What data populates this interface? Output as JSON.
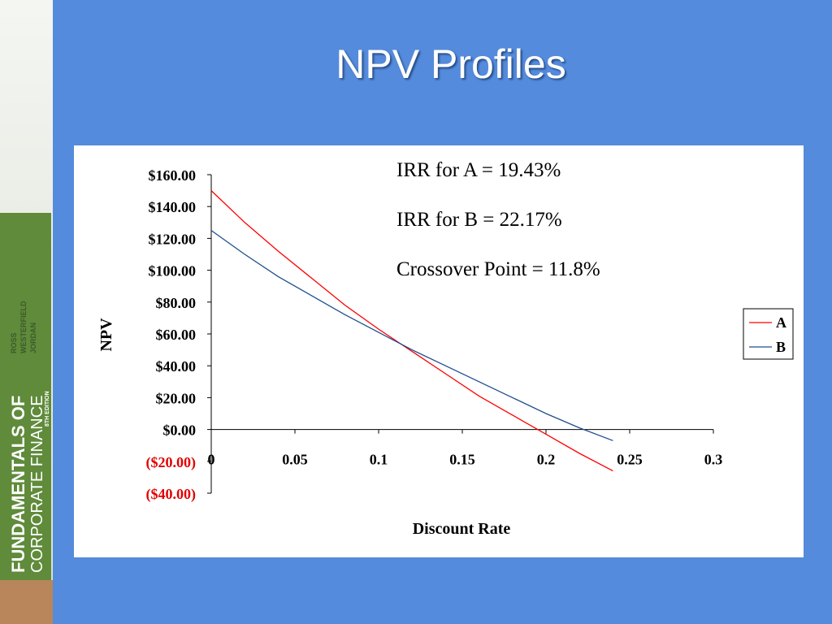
{
  "slide": {
    "title": "NPV Profiles",
    "book": {
      "title_bold": "FUNDAMENTALS OF",
      "title_light": "CORPORATE FINANCE",
      "authors": [
        "ROSS",
        "WESTERFIELD",
        "JORDAN"
      ],
      "edition": "8TH EDITION"
    }
  },
  "chart_data": {
    "type": "line",
    "xlabel": "Discount Rate",
    "ylabel": "NPV",
    "annotations": [
      "IRR for A = 19.43%",
      "IRR for B = 22.17%",
      "Crossover Point = 11.8%"
    ],
    "x": [
      0,
      0.02,
      0.04,
      0.06,
      0.08,
      0.1,
      0.12,
      0.14,
      0.16,
      0.18,
      0.2,
      0.22,
      0.24
    ],
    "series": [
      {
        "name": "A",
        "color": "#ff0000",
        "values": [
          150,
          130,
          112,
          95,
          78,
          63,
          49,
          35,
          21,
          9,
          -3,
          -15,
          -26
        ]
      },
      {
        "name": "B",
        "color": "#1f4e8c",
        "values": [
          125,
          110,
          96,
          84,
          72,
          61,
          50,
          40,
          30,
          20,
          10,
          1,
          -7
        ]
      }
    ],
    "xlim": [
      0,
      0.3
    ],
    "xticks": [
      0,
      0.05,
      0.1,
      0.15,
      0.2,
      0.25,
      0.3
    ],
    "ylim": [
      -40,
      160
    ],
    "yticks": [
      {
        "value": -40,
        "label": "($40.00)"
      },
      {
        "value": -20,
        "label": "($20.00)"
      },
      {
        "value": 0,
        "label": "$0.00"
      },
      {
        "value": 20,
        "label": "$20.00"
      },
      {
        "value": 40,
        "label": "$40.00"
      },
      {
        "value": 60,
        "label": "$60.00"
      },
      {
        "value": 80,
        "label": "$80.00"
      },
      {
        "value": 100,
        "label": "$100.00"
      },
      {
        "value": 120,
        "label": "$120.00"
      },
      {
        "value": 140,
        "label": "$140.00"
      },
      {
        "value": 160,
        "label": "$160.00"
      }
    ],
    "negative_tick_color": "#e00000",
    "grid": false,
    "legend": "right"
  }
}
